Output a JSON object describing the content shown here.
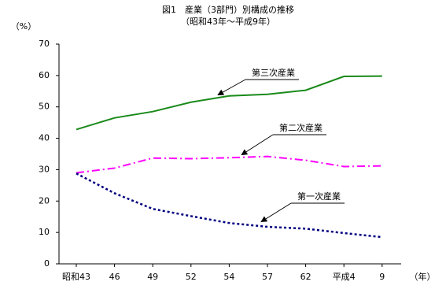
{
  "chart_data": {
    "type": "line",
    "title": "図1　産業（3部門）別構成の推移",
    "subtitle": "（昭和43年～平成9年）",
    "y_label": "（%）",
    "x_label": "（年）",
    "categories": [
      "昭和43",
      "46",
      "49",
      "52",
      "54",
      "57",
      "62",
      "平成4",
      "9"
    ],
    "series": [
      {
        "name": "第三次産業",
        "color": "#1a8a1a",
        "dash": "solid",
        "values": [
          42.8,
          46.5,
          48.5,
          51.5,
          53.5,
          54.0,
          55.3,
          59.7,
          59.8
        ]
      },
      {
        "name": "第二次産業",
        "color": "#ff00ff",
        "dash": "dash-dot",
        "values": [
          29.0,
          30.5,
          33.7,
          33.5,
          33.8,
          34.2,
          33.0,
          31.0,
          31.2
        ]
      },
      {
        "name": "第一次産業",
        "color": "#000080",
        "dash": "dot",
        "values": [
          28.8,
          22.5,
          17.5,
          15.2,
          13.0,
          11.8,
          11.2,
          9.8,
          8.5
        ]
      }
    ],
    "ylim": [
      0,
      70
    ],
    "yticks": [
      0,
      10,
      20,
      30,
      40,
      50,
      60,
      70
    ],
    "grid": false
  }
}
